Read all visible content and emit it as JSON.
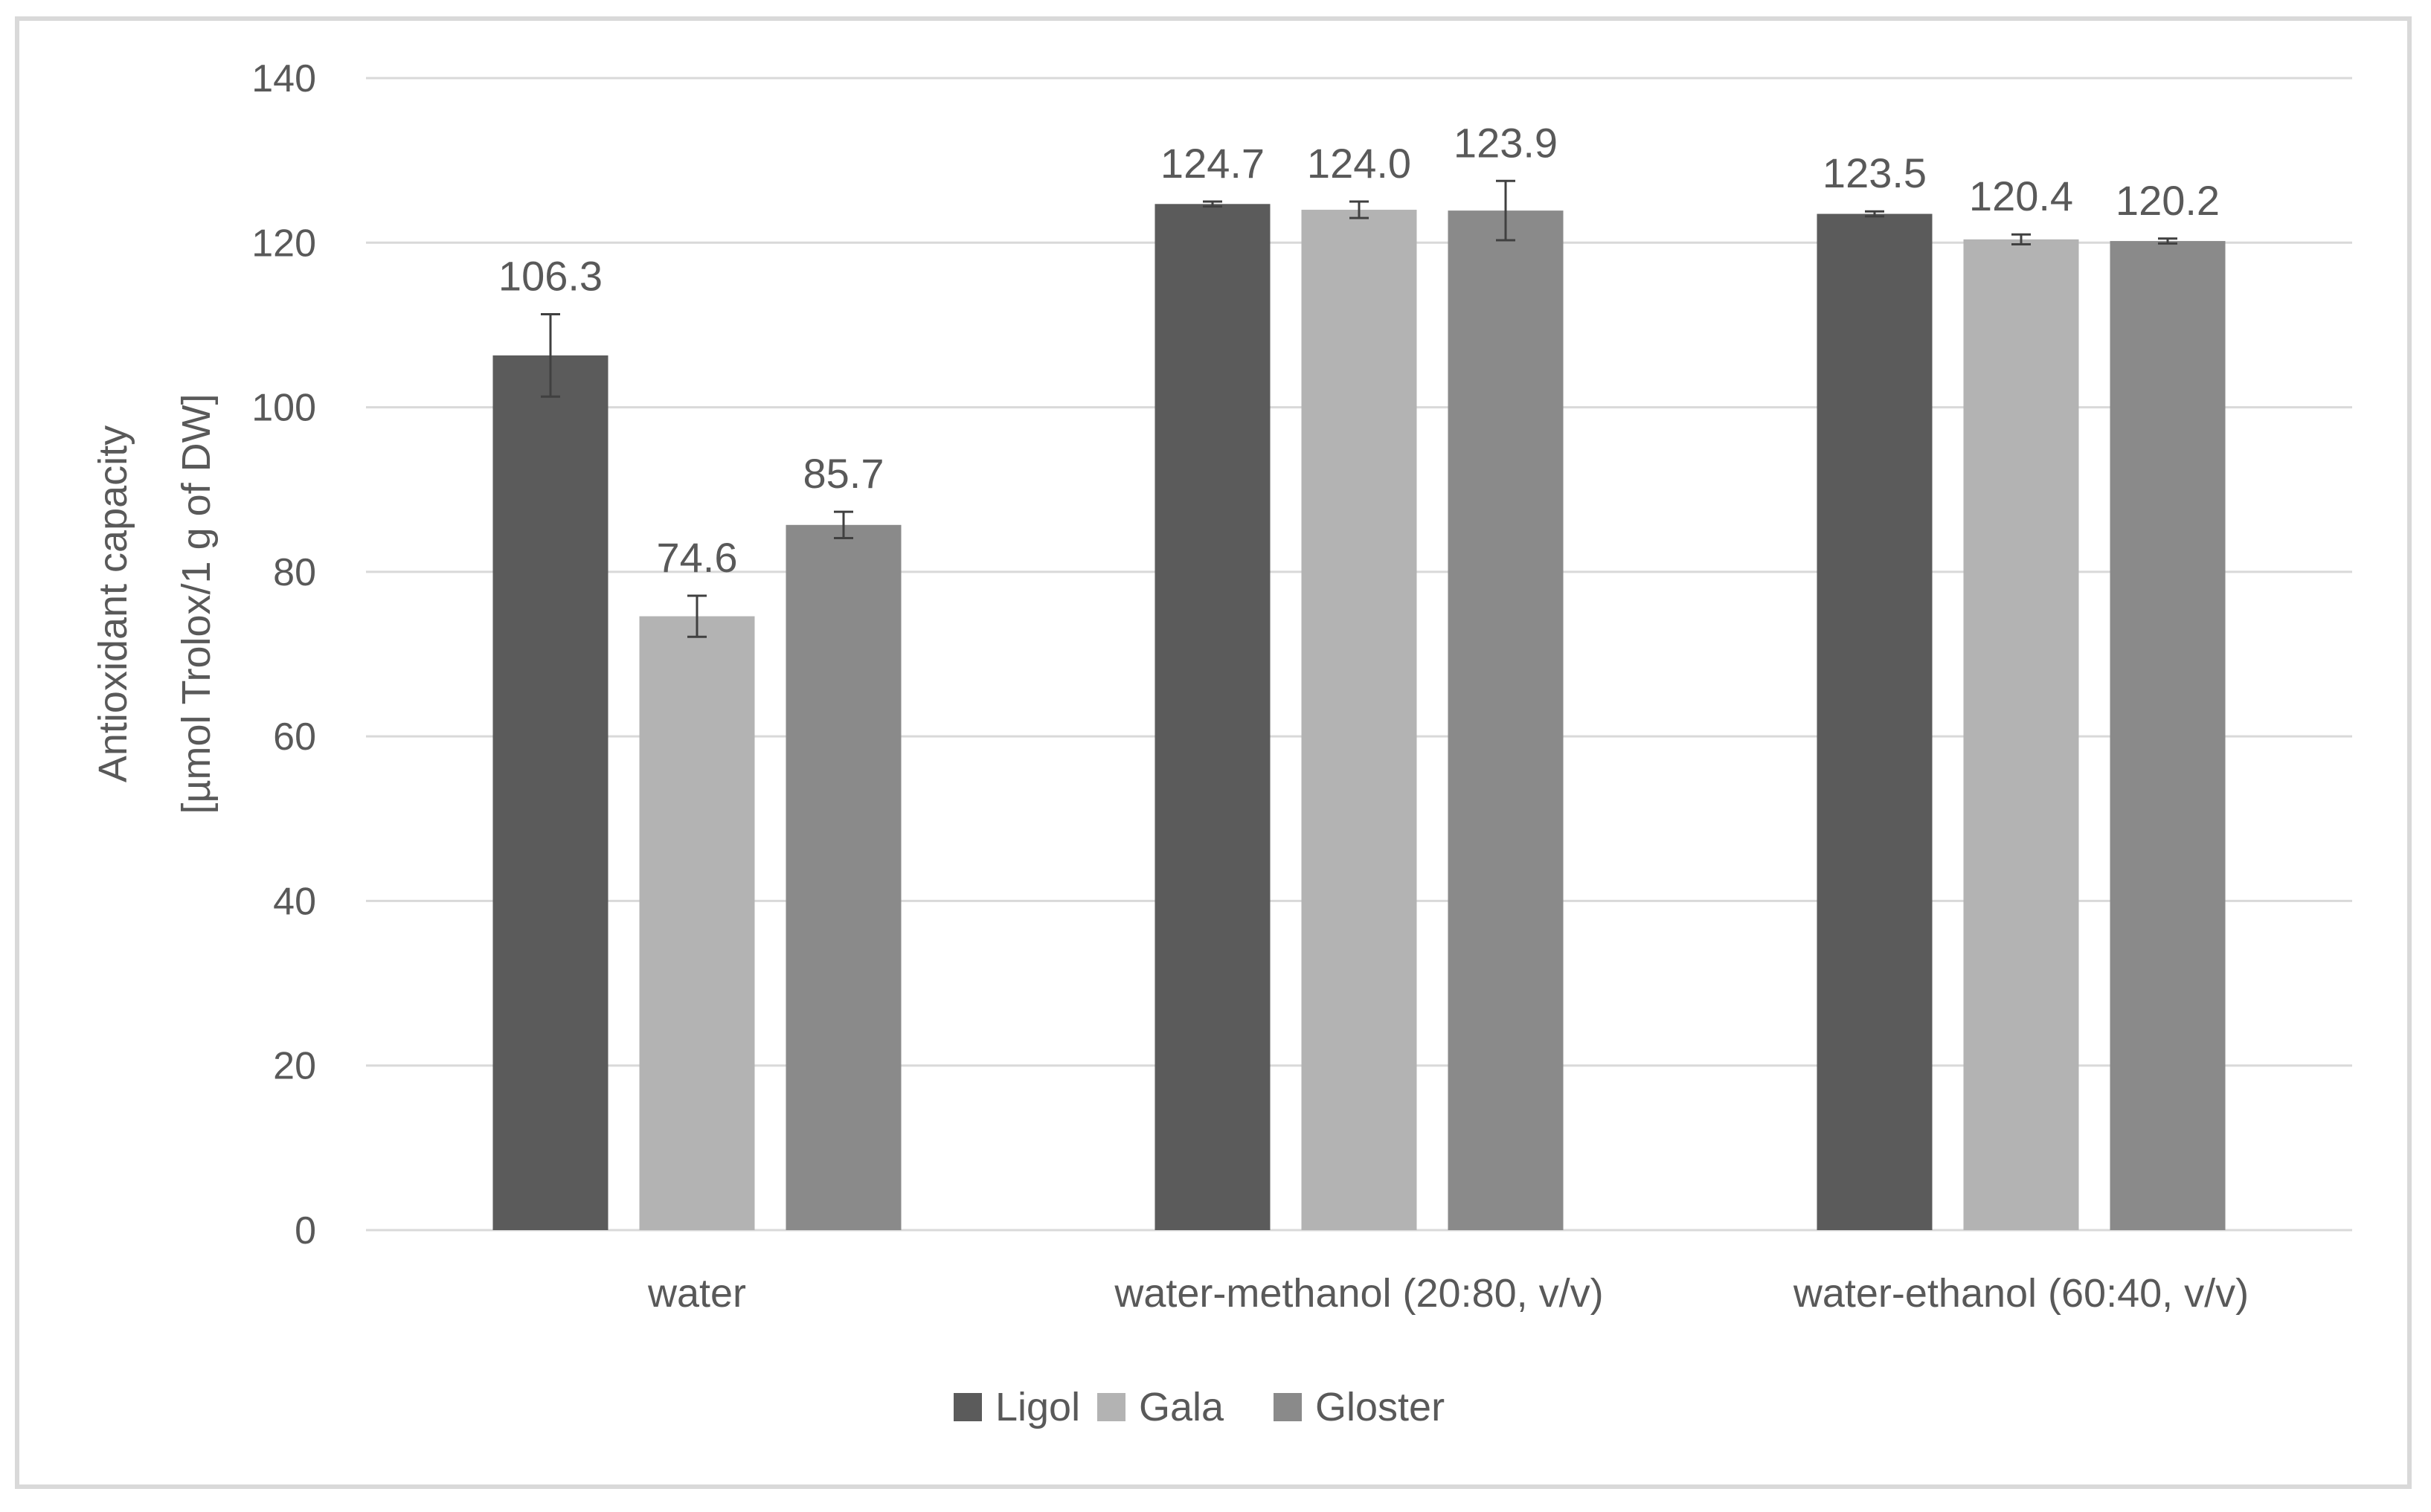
{
  "chart_data": {
    "type": "bar",
    "ylabel_line1": "Antioxidant capacity",
    "ylabel_line2": "[µmol Trolox/1 g of DW]",
    "xlabel": "",
    "ylim": [
      0,
      140
    ],
    "yticks": [
      0,
      20,
      40,
      60,
      80,
      100,
      120,
      140
    ],
    "grid": true,
    "legend_position": "bottom",
    "categories": [
      "water",
      "water-methanol (20:80, v/v)",
      "water-ethanol (60:40, v/v)"
    ],
    "series": [
      {
        "name": "Ligol",
        "color": "#5b5b5b",
        "values": [
          106.3,
          124.7,
          123.5
        ],
        "labels": [
          "106.3",
          "124.7",
          "123.5"
        ],
        "errors": [
          5.0,
          0.3,
          0.3
        ]
      },
      {
        "name": "Gala",
        "color": "#b3b3b3",
        "values": [
          74.6,
          124.0,
          120.4
        ],
        "labels": [
          "74.6",
          "124.0",
          "120.4"
        ],
        "errors": [
          2.5,
          1.0,
          0.6
        ]
      },
      {
        "name": "Gloster",
        "color": "#8a8a8a",
        "values": [
          85.7,
          123.9,
          120.2
        ],
        "labels": [
          "85.7",
          "123.9",
          "120.2"
        ],
        "errors": [
          1.6,
          3.6,
          0.3
        ]
      }
    ]
  }
}
